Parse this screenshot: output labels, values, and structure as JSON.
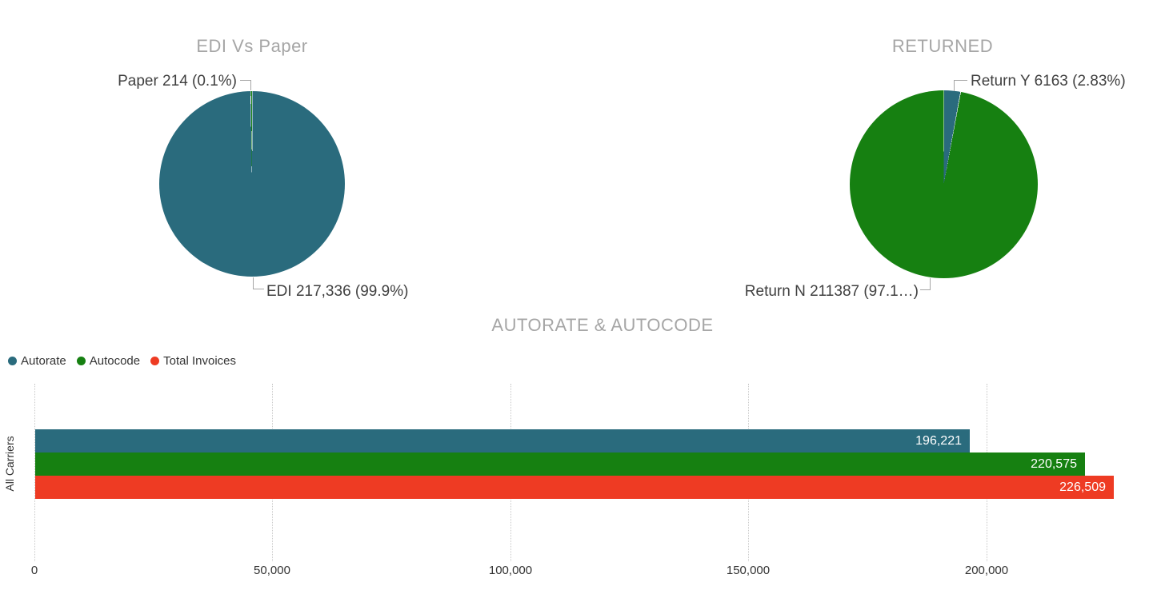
{
  "colors": {
    "teal": "#2A6B7D",
    "green": "#168011",
    "red": "#EE3B23",
    "title_gray": "#A6A6A6",
    "label_dark": "#404040",
    "axis_text": "#333333"
  },
  "pie_edi_vs_paper": {
    "title": "EDI Vs Paper",
    "label_paper": "Paper 214 (0.1%)",
    "label_edi": "EDI 217,336 (99.9%)"
  },
  "pie_returned": {
    "title": "RETURNED",
    "label_return_y": "Return Y 6163 (2.83%)",
    "label_return_n": "Return N 211387 (97.1…)"
  },
  "bar_chart": {
    "title": "AUTORATE & AUTOCODE",
    "legend": [
      {
        "label": "Autorate",
        "color": "#2A6B7D"
      },
      {
        "label": "Autocode",
        "color": "#168011"
      },
      {
        "label": "Total Invoices",
        "color": "#EE3B23"
      }
    ],
    "category_label": "All Carriers",
    "bars": [
      {
        "name": "Autorate",
        "display": "196,221"
      },
      {
        "name": "Autocode",
        "display": "220,575"
      },
      {
        "name": "Total Invoices",
        "display": "226,509"
      }
    ],
    "x_ticks": [
      "0",
      "50,000",
      "100,000",
      "150,000",
      "200,000"
    ]
  },
  "chart_data": [
    {
      "type": "pie",
      "title": "EDI Vs Paper",
      "slices": [
        {
          "label": "EDI",
          "value": 217336,
          "pct": 99.9,
          "color": "#2A6B7D"
        },
        {
          "label": "Paper",
          "value": 214,
          "pct": 0.1,
          "color": "#168011"
        }
      ],
      "start_angle": "12 o'clock, clockwise",
      "labels_shown": [
        "Paper 214 (0.1%)",
        "EDI 217,336 (99.9%)"
      ]
    },
    {
      "type": "pie",
      "title": "RETURNED",
      "slices": [
        {
          "label": "Return Y",
          "value": 6163,
          "pct": 2.83,
          "color": "#2A6B7D"
        },
        {
          "label": "Return N",
          "value": 211387,
          "pct": 97.17,
          "color": "#168011"
        }
      ],
      "start_angle": "12 o'clock, clockwise",
      "labels_shown": [
        "Return Y 6163 (2.83%)",
        "Return N 211387 (97.1…)"
      ]
    },
    {
      "type": "bar",
      "orientation": "horizontal",
      "title": "AUTORATE & AUTOCODE",
      "categories": [
        "All Carriers"
      ],
      "series": [
        {
          "name": "Autorate",
          "values": [
            196221
          ],
          "color": "#2A6B7D"
        },
        {
          "name": "Autocode",
          "values": [
            220575
          ],
          "color": "#168011"
        },
        {
          "name": "Total Invoices",
          "values": [
            226509
          ],
          "color": "#EE3B23"
        }
      ],
      "xlim": [
        0,
        236000
      ],
      "x_tick_values": [
        0,
        50000,
        100000,
        150000,
        200000
      ],
      "grid": "vertical-dotted",
      "legend_position": "top-left",
      "value_labels": "inside-end, white"
    }
  ]
}
